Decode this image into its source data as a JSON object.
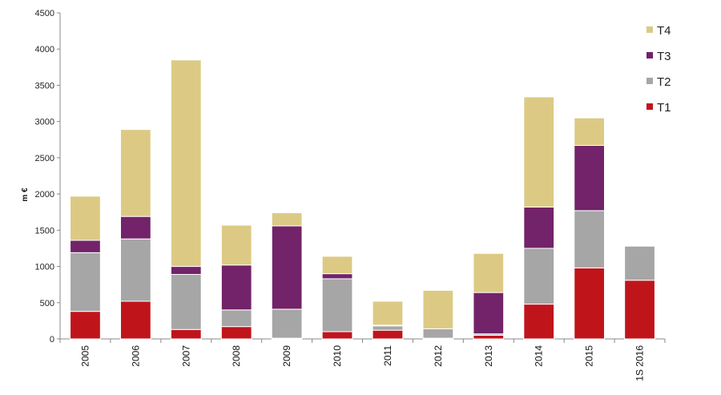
{
  "chart_data": {
    "type": "bar",
    "stacked": true,
    "ylabel": "m €",
    "xlabel": "",
    "ylim": [
      0,
      4500
    ],
    "yticks": [
      0,
      500,
      1000,
      1500,
      2000,
      2500,
      3000,
      3500,
      4000,
      4500
    ],
    "categories": [
      "2005",
      "2006",
      "2007",
      "2008",
      "2009",
      "2010",
      "2011",
      "2012",
      "2013",
      "2014",
      "2015",
      "1S 2016"
    ],
    "series": [
      {
        "name": "T1",
        "color": "#C0141B",
        "values": [
          380,
          520,
          130,
          170,
          10,
          100,
          120,
          10,
          50,
          480,
          980,
          810
        ]
      },
      {
        "name": "T2",
        "color": "#A6A6A6",
        "values": [
          810,
          860,
          760,
          230,
          400,
          730,
          60,
          130,
          20,
          770,
          790,
          470
        ]
      },
      {
        "name": "T3",
        "color": "#722369",
        "values": [
          170,
          310,
          110,
          620,
          1150,
          70,
          10,
          0,
          570,
          570,
          900,
          0
        ]
      },
      {
        "name": "T4",
        "color": "#DCCA84",
        "values": [
          610,
          1200,
          2850,
          550,
          180,
          240,
          330,
          530,
          540,
          1520,
          380,
          0
        ]
      }
    ],
    "legend": {
      "position": "top-right",
      "order": [
        "T4",
        "T3",
        "T2",
        "T1"
      ]
    },
    "grid": false
  }
}
